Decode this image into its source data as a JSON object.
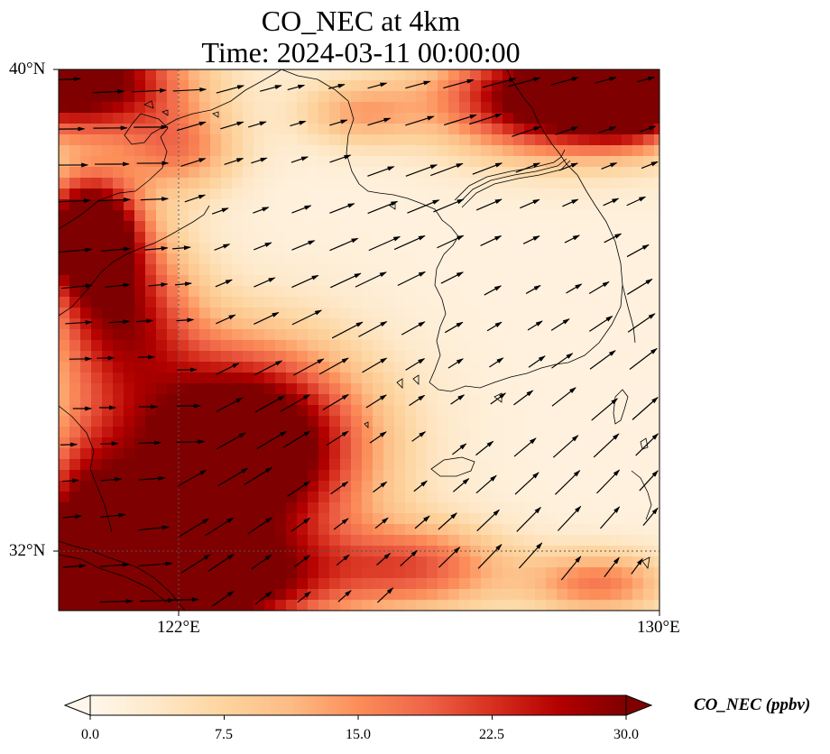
{
  "map": {
    "title_line1": "CO_NEC at 4km",
    "title_line2": "Time: 2024-03-11 00:00:00",
    "lat_labels": [
      "40°N",
      "32°N"
    ],
    "lon_labels": [
      "122°E",
      "130°E"
    ],
    "extent": {
      "lon_min": 120,
      "lon_max": 130,
      "lat_min": 31,
      "lat_max": 40
    },
    "gridlines": {
      "lons": [
        122
      ],
      "lats": [
        32
      ],
      "style": "dotted"
    },
    "field_description": "CO concentration heat field with wind vectors over Yellow Sea / Korean Peninsula",
    "features": [
      "coastlines",
      "wind-arrows"
    ]
  },
  "colorbar": {
    "label": "CO_NEC (ppbv)",
    "ticks": [
      "0.0",
      "7.5",
      "15.0",
      "22.5",
      "30.0"
    ],
    "min": 0,
    "max": 30,
    "extend": "both",
    "colormap": "OrRd",
    "colors": [
      "#fff7ec",
      "#fee8c8",
      "#fdd49e",
      "#fdbb84",
      "#fc8d59",
      "#ef6548",
      "#d7301f",
      "#b30000",
      "#7f0000"
    ]
  }
}
